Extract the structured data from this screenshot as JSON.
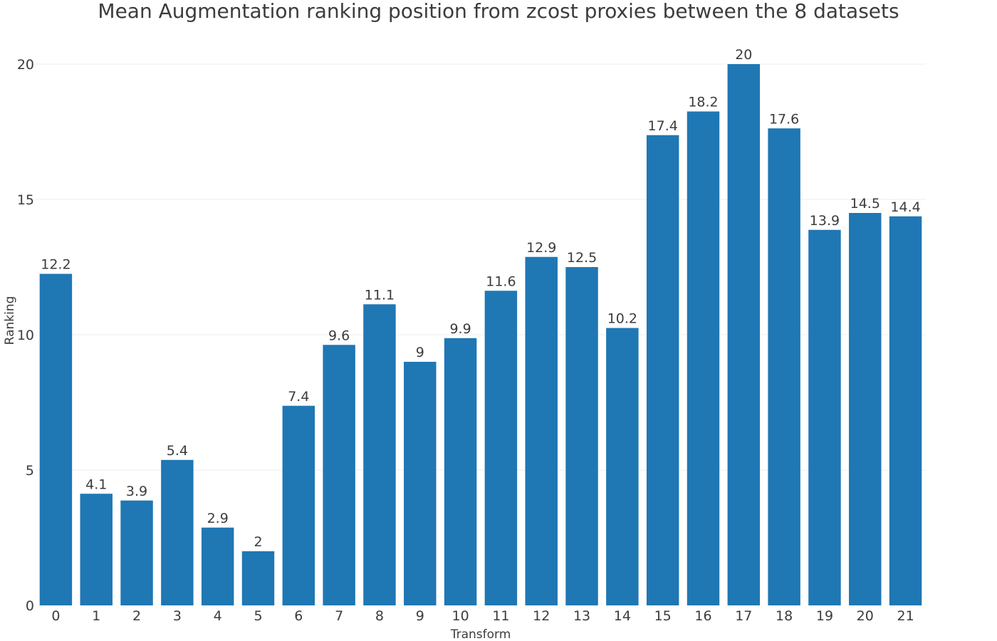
{
  "chart_data": {
    "type": "bar",
    "title": "Mean Augmentation ranking position from zcost proxies between the 8 datasets",
    "xlabel": "Transform",
    "ylabel": "Ranking",
    "categories": [
      "0",
      "1",
      "2",
      "3",
      "4",
      "5",
      "6",
      "7",
      "8",
      "9",
      "10",
      "11",
      "12",
      "13",
      "14",
      "15",
      "16",
      "17",
      "18",
      "19",
      "20",
      "21"
    ],
    "values": [
      12.25,
      4.125,
      3.875,
      5.375,
      2.875,
      2.0,
      7.375,
      9.625,
      11.125,
      9.0,
      9.875,
      11.625,
      12.875,
      12.5,
      10.25,
      17.375,
      18.25,
      20.0,
      17.625,
      13.875,
      14.5,
      14.375
    ],
    "value_labels": [
      "12.2",
      "4.1",
      "3.9",
      "5.4",
      "2.9",
      "2",
      "7.4",
      "9.6",
      "11.1",
      "9",
      "9.9",
      "11.6",
      "12.9",
      "12.5",
      "10.2",
      "17.4",
      "18.2",
      "20",
      "17.6",
      "13.9",
      "14.5",
      "14.4"
    ],
    "ylim": [
      0,
      21
    ],
    "yticks": [
      0,
      5,
      10,
      15,
      20
    ],
    "grid": true,
    "legend": "none",
    "bar_color": "#1f77b4"
  }
}
